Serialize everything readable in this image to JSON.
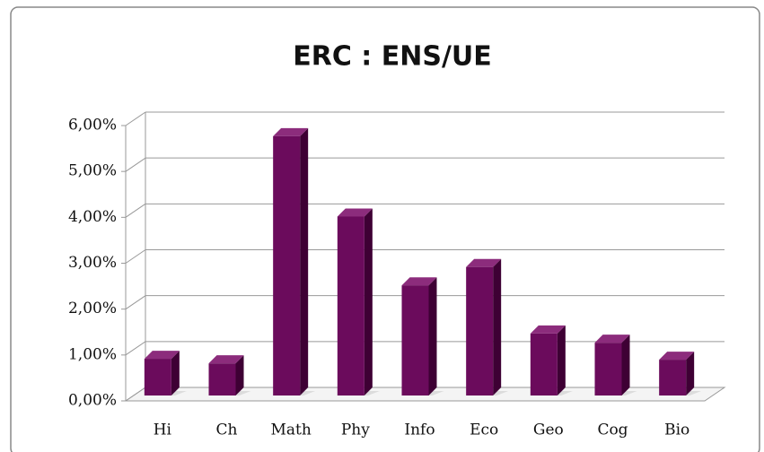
{
  "chart_data": {
    "type": "bar3d",
    "title": "ERC : ENS/UE",
    "categories": [
      "Hi",
      "Ch",
      "Math",
      "Phy",
      "Info",
      "Eco",
      "Geo",
      "Cog",
      "Bio"
    ],
    "values": [
      0.8,
      0.7,
      5.65,
      3.9,
      2.4,
      2.8,
      1.35,
      1.15,
      0.78
    ],
    "color": "#6b0b5c",
    "ylim": [
      0,
      6
    ],
    "yticks": [
      {
        "value": 0,
        "label": "0,00%"
      },
      {
        "value": 1,
        "label": "1,00%"
      },
      {
        "value": 2,
        "label": "2,00%"
      },
      {
        "value": 3,
        "label": "3,00%"
      },
      {
        "value": 4,
        "label": "4,00%"
      },
      {
        "value": 5,
        "label": "5,00%"
      },
      {
        "value": 6,
        "label": "6,00%"
      }
    ],
    "grid": true
  }
}
